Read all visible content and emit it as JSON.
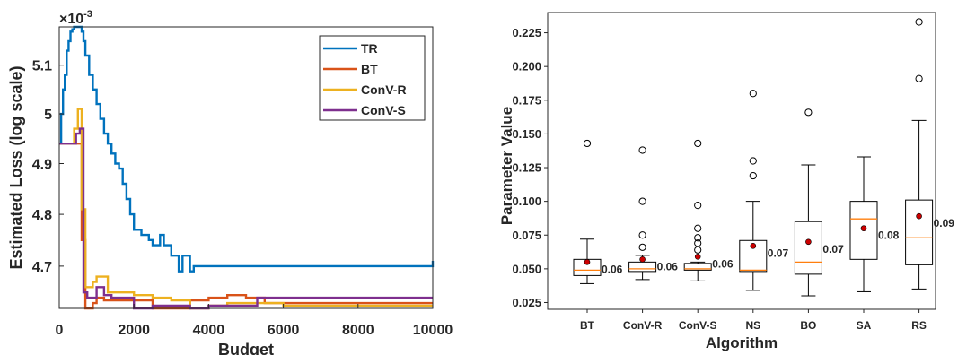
{
  "chart_data": [
    {
      "type": "line",
      "title": "",
      "xlabel": "Budget",
      "ylabel": "Estimated Loss (log scale)",
      "y_exponent_label": "×10",
      "y_exponent": "-3",
      "xlim": [
        0,
        10000
      ],
      "ylim": [
        4.62,
        5.18
      ],
      "y_scale": "log",
      "x_ticks": [
        "0",
        "2000",
        "4000",
        "6000",
        "8000",
        "10000"
      ],
      "x_tick_values": [
        0,
        2000,
        4000,
        6000,
        8000,
        10000
      ],
      "y_ticks": [
        "4.7",
        "4.8",
        "4.9",
        "5",
        "5.1"
      ],
      "y_tick_values": [
        4.7,
        4.8,
        4.9,
        5.0,
        5.1
      ],
      "grid": false,
      "legend_position": "top-right",
      "series": [
        {
          "name": "TR",
          "color": "#0072BD",
          "x": [
            0,
            50,
            100,
            150,
            200,
            250,
            300,
            350,
            400,
            500,
            600,
            650,
            700,
            800,
            900,
            1000,
            1100,
            1200,
            1300,
            1400,
            1500,
            1600,
            1700,
            1800,
            1900,
            2000,
            2200,
            2400,
            2500,
            2700,
            2800,
            3000,
            3200,
            3300,
            3500,
            3600,
            8800,
            9999,
            10000
          ],
          "y": [
            4.94,
            5.0,
            5.05,
            5.08,
            5.13,
            5.15,
            5.17,
            5.175,
            5.18,
            5.18,
            5.17,
            5.15,
            5.12,
            5.08,
            5.05,
            5.02,
            4.99,
            4.96,
            4.94,
            4.92,
            4.9,
            4.89,
            4.86,
            4.83,
            4.8,
            4.77,
            4.76,
            4.75,
            4.74,
            4.76,
            4.74,
            4.72,
            4.69,
            4.72,
            4.69,
            4.7,
            4.7,
            4.7,
            4.71
          ]
        },
        {
          "name": "BT",
          "color": "#D95319",
          "x": [
            0,
            500,
            600,
            700,
            900,
            1000,
            1200,
            1800,
            2500,
            3500,
            4000,
            4500,
            5000,
            5500,
            6000,
            10000
          ],
          "y": [
            4.94,
            4.94,
            4.75,
            4.62,
            4.63,
            4.64,
            4.635,
            4.635,
            4.62,
            4.635,
            4.64,
            4.645,
            4.64,
            4.63,
            4.63,
            4.63
          ]
        },
        {
          "name": "ConV-R",
          "color": "#EDB120",
          "x": [
            0,
            400,
            500,
            600,
            700,
            900,
            1000,
            1300,
            1500,
            2000,
            2500,
            3000,
            3500,
            4000,
            4500,
            5000,
            6000,
            10000
          ],
          "y": [
            4.94,
            4.97,
            5.01,
            4.81,
            4.66,
            4.67,
            4.68,
            4.65,
            4.65,
            4.645,
            4.64,
            4.635,
            4.62,
            4.625,
            4.63,
            4.63,
            4.625,
            4.625
          ]
        },
        {
          "name": "ConV-S",
          "color": "#7E2F8E",
          "x": [
            0,
            450,
            550,
            650,
            750,
            1000,
            1200,
            1400,
            2000,
            2500,
            3500,
            4000,
            5000,
            5300,
            10000
          ],
          "y": [
            4.94,
            4.96,
            4.97,
            4.65,
            4.64,
            4.66,
            4.645,
            4.64,
            4.62,
            4.625,
            4.62,
            4.625,
            4.625,
            4.64,
            4.64
          ]
        }
      ]
    },
    {
      "type": "box",
      "title": "",
      "xlabel": "Algorithm",
      "ylabel": "Parameter Value",
      "ylim": [
        0.02,
        0.24
      ],
      "y_ticks": [
        "0.025",
        "0.050",
        "0.075",
        "0.100",
        "0.125",
        "0.150",
        "0.175",
        "0.200",
        "0.225"
      ],
      "y_tick_values": [
        0.025,
        0.05,
        0.075,
        0.1,
        0.125,
        0.15,
        0.175,
        0.2,
        0.225
      ],
      "categories": [
        "BT",
        "ConV-R",
        "ConV-S",
        "NS",
        "BO",
        "SA",
        "RS"
      ],
      "boxes": [
        {
          "whisker_low": 0.039,
          "q1": 0.045,
          "median": 0.049,
          "q3": 0.057,
          "whisker_high": 0.072,
          "mean": 0.055,
          "outliers": [
            0.143
          ],
          "mean_label": "0.06"
        },
        {
          "whisker_low": 0.042,
          "q1": 0.048,
          "median": 0.05,
          "q3": 0.055,
          "whisker_high": 0.06,
          "mean": 0.057,
          "outliers": [
            0.066,
            0.075,
            0.1,
            0.138
          ],
          "mean_label": "0.06"
        },
        {
          "whisker_low": 0.041,
          "q1": 0.049,
          "median": 0.05,
          "q3": 0.054,
          "whisker_high": 0.055,
          "mean": 0.059,
          "outliers": [
            0.064,
            0.069,
            0.073,
            0.08,
            0.097,
            0.143
          ],
          "mean_label": "0.06"
        },
        {
          "whisker_low": 0.034,
          "q1": 0.048,
          "median": 0.049,
          "q3": 0.071,
          "whisker_high": 0.1,
          "mean": 0.067,
          "outliers": [
            0.119,
            0.13,
            0.18
          ],
          "mean_label": "0.07"
        },
        {
          "whisker_low": 0.03,
          "q1": 0.046,
          "median": 0.055,
          "q3": 0.085,
          "whisker_high": 0.127,
          "mean": 0.07,
          "outliers": [
            0.166
          ],
          "mean_label": "0.07"
        },
        {
          "whisker_low": 0.033,
          "q1": 0.057,
          "median": 0.087,
          "q3": 0.1,
          "whisker_high": 0.133,
          "mean": 0.08,
          "outliers": [],
          "mean_label": "0.08"
        },
        {
          "whisker_low": 0.035,
          "q1": 0.053,
          "median": 0.073,
          "q3": 0.101,
          "whisker_high": 0.16,
          "mean": 0.089,
          "outliers": [
            0.191,
            0.233
          ],
          "mean_label": "0.09"
        }
      ],
      "colors": {
        "box_edge": "#000000",
        "median": "#FF7F0E",
        "mean_marker": "#CC0000"
      },
      "grid": false
    }
  ]
}
